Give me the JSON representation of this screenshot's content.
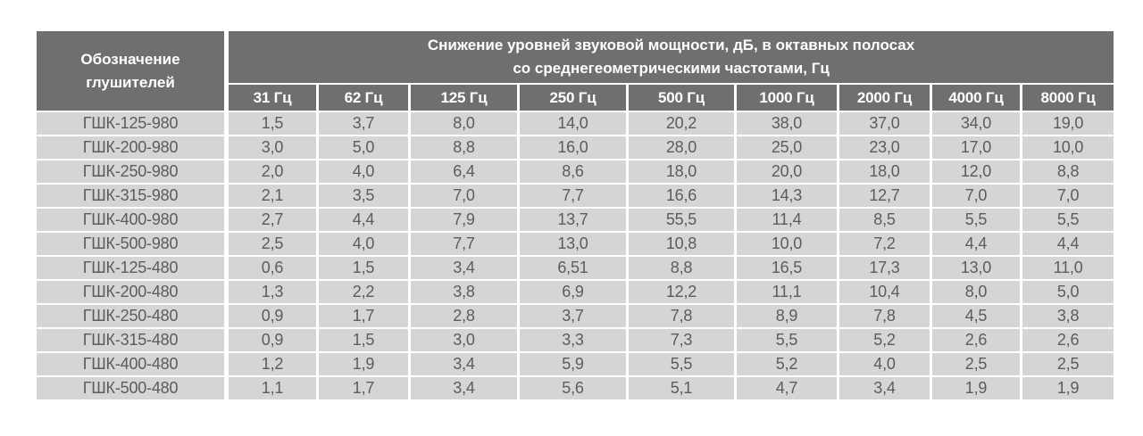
{
  "colors": {
    "page_background": "#ffffff",
    "header_bg": "#6f6f6f",
    "header_text": "#ffffff",
    "cell_bg": "#d5d5d5",
    "cell_text": "#5c5c5c",
    "grid_gap": "#ffffff"
  },
  "chart_data": {
    "type": "table",
    "title": "",
    "row_header": {
      "line1": "Обозначение",
      "line2": "глушителей"
    },
    "span_header": {
      "line1": "Снижение уровней звуковой мощности, дБ, в октавных полосах",
      "line2": "со среднегеометрическими частотами, Гц"
    },
    "columns": [
      "31 Гц",
      "62 Гц",
      "125 Гц",
      "250 Гц",
      "500 Гц",
      "1000 Гц",
      "2000 Гц",
      "4000 Гц",
      "8000 Гц"
    ],
    "rows": [
      {
        "name": "ГШК-125-980",
        "values": [
          "1,5",
          "3,7",
          "8,0",
          "14,0",
          "20,2",
          "38,0",
          "37,0",
          "34,0",
          "19,0"
        ]
      },
      {
        "name": "ГШК-200-980",
        "values": [
          "3,0",
          "5,0",
          "8,8",
          "16,0",
          "28,0",
          "25,0",
          "23,0",
          "17,0",
          "10,0"
        ]
      },
      {
        "name": "ГШК-250-980",
        "values": [
          "2,0",
          "4,0",
          "6,4",
          "8,6",
          "18,0",
          "20,0",
          "18,0",
          "12,0",
          "8,8"
        ]
      },
      {
        "name": "ГШК-315-980",
        "values": [
          "2,1",
          "3,5",
          "7,0",
          "7,7",
          "16,6",
          "14,3",
          "12,7",
          "7,0",
          "7,0"
        ]
      },
      {
        "name": "ГШК-400-980",
        "values": [
          "2,7",
          "4,4",
          "7,9",
          "13,7",
          "55,5",
          "11,4",
          "8,5",
          "5,5",
          "5,5"
        ]
      },
      {
        "name": "ГШК-500-980",
        "values": [
          "2,5",
          "4,0",
          "7,7",
          "13,0",
          "10,8",
          "10,0",
          "7,2",
          "4,4",
          "4,4"
        ]
      },
      {
        "name": "ГШК-125-480",
        "values": [
          "0,6",
          "1,5",
          "3,4",
          "6,51",
          "8,8",
          "16,5",
          "17,3",
          "13,0",
          "11,0"
        ]
      },
      {
        "name": "ГШК-200-480",
        "values": [
          "1,3",
          "2,2",
          "3,8",
          "6,9",
          "12,2",
          "11,1",
          "10,4",
          "8,0",
          "5,0"
        ]
      },
      {
        "name": "ГШК-250-480",
        "values": [
          "0,9",
          "1,7",
          "2,8",
          "3,7",
          "7,8",
          "8,9",
          "7,8",
          "4,5",
          "3,8"
        ]
      },
      {
        "name": "ГШК-315-480",
        "values": [
          "0,9",
          "1,5",
          "3,0",
          "3,3",
          "7,3",
          "5,5",
          "5,2",
          "2,6",
          "2,6"
        ]
      },
      {
        "name": "ГШК-400-480",
        "values": [
          "1,2",
          "1,9",
          "3,4",
          "5,9",
          "5,5",
          "5,2",
          "4,0",
          "2,5",
          "2,5"
        ]
      },
      {
        "name": "ГШК-500-480",
        "values": [
          "1,1",
          "1,7",
          "3,4",
          "5,6",
          "5,1",
          "4,7",
          "3,4",
          "1,9",
          "1,9"
        ]
      }
    ]
  }
}
